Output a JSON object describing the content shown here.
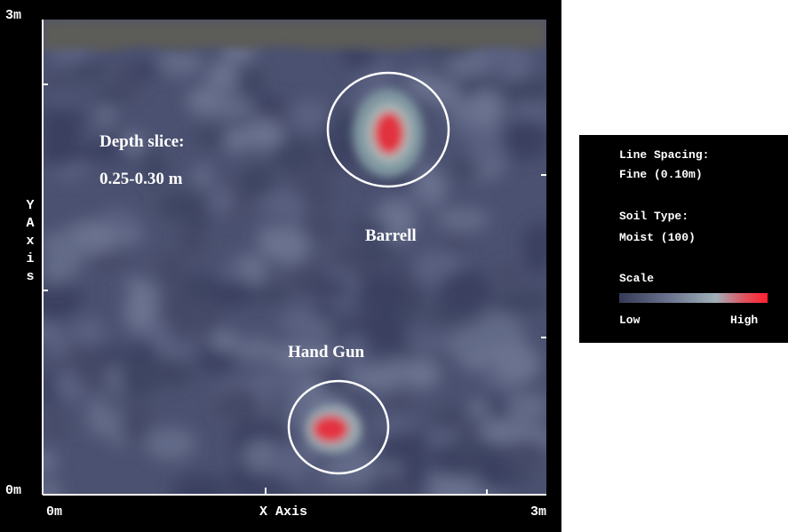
{
  "plot": {
    "y_axis_top": "3m",
    "y_axis_bottom": "0m",
    "x_axis_left": "0m",
    "x_axis_right": "3m",
    "x_axis_title": "X Axis",
    "y_axis_title": "Y Axis"
  },
  "annotations": {
    "depth_slice_label": "Depth slice:",
    "depth_slice_range": "0.25-0.30 m",
    "barrel": "Barrell",
    "hand_gun": "Hand Gun"
  },
  "legend": {
    "line_spacing_label": "Line Spacing:",
    "line_spacing_value": "Fine (0.10m)",
    "soil_type_label": "Soil Type:",
    "soil_type_value": "Moist (100)",
    "scale_label": "Scale",
    "scale_low": "Low",
    "scale_high": "High"
  }
}
